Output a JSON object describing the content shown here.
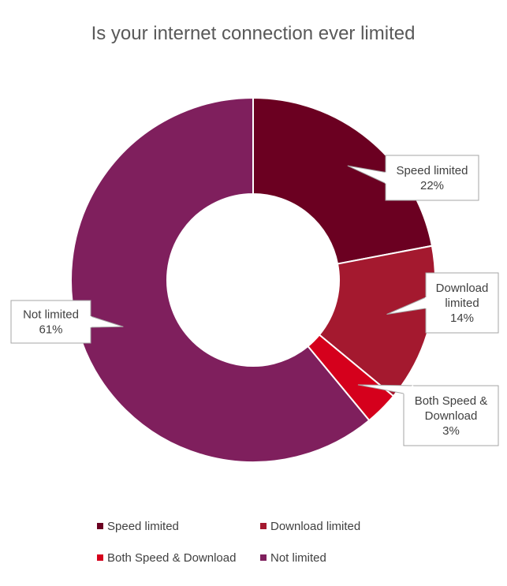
{
  "chart_data": {
    "type": "pie",
    "variant": "donut",
    "title": "Is your internet connection ever limited",
    "categories": [
      "Speed limited",
      "Download limited",
      "Both Speed & Download",
      "Not limited"
    ],
    "values": [
      22,
      14,
      3,
      61
    ],
    "unit": "%",
    "colors": [
      "#6b0021",
      "#a4192f",
      "#d5001c",
      "#7f1f5d"
    ],
    "data_labels": [
      {
        "lines": [
          "Speed limited",
          "22%"
        ]
      },
      {
        "lines": [
          "Download",
          "limited",
          "14%"
        ]
      },
      {
        "lines": [
          "Both Speed &",
          "Download",
          "3%"
        ]
      },
      {
        "lines": [
          "Not limited",
          "61%"
        ]
      }
    ],
    "legend": {
      "position": "bottom",
      "items": [
        "Speed limited",
        "Download limited",
        "Both Speed & Download",
        "Not limited"
      ]
    }
  }
}
